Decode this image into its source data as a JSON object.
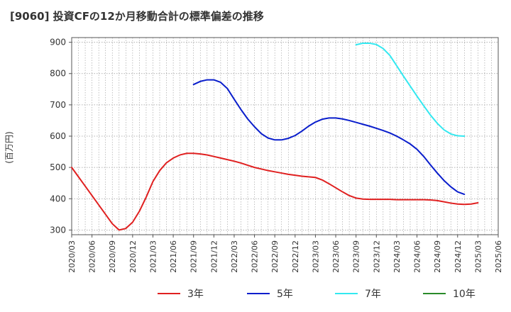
{
  "chart_data": {
    "type": "line",
    "title": "[9060]  投資CFの12か月移動合計の標準偏差の推移",
    "ylabel": "(百万円)",
    "xlabel": "",
    "ylim": [
      285,
      915
    ],
    "yticks": [
      300,
      400,
      500,
      600,
      700,
      800,
      900
    ],
    "x_categories": [
      "2020/03",
      "2020/06",
      "2020/09",
      "2020/12",
      "2021/03",
      "2021/06",
      "2021/09",
      "2021/12",
      "2022/03",
      "2022/06",
      "2022/09",
      "2022/12",
      "2023/03",
      "2023/06",
      "2023/09",
      "2023/12",
      "2024/03",
      "2024/06",
      "2024/09",
      "2024/12",
      "2025/03",
      "2025/06"
    ],
    "grid": true,
    "legend_position": "bottom",
    "colors": {
      "3年": "#e02020",
      "5年": "#0a1ecc",
      "7年": "#33e8f0",
      "10年": "#2a8a2a"
    },
    "series": [
      {
        "name": "3年",
        "color": "#e02020",
        "points": [
          [
            "2020/03",
            500
          ],
          [
            "2020/04",
            470
          ],
          [
            "2020/05",
            440
          ],
          [
            "2020/06",
            410
          ],
          [
            "2020/07",
            380
          ],
          [
            "2020/08",
            350
          ],
          [
            "2020/09",
            320
          ],
          [
            "2020/10",
            300
          ],
          [
            "2020/11",
            305
          ],
          [
            "2020/12",
            325
          ],
          [
            "2021/01",
            360
          ],
          [
            "2021/02",
            405
          ],
          [
            "2021/03",
            455
          ],
          [
            "2021/04",
            490
          ],
          [
            "2021/05",
            515
          ],
          [
            "2021/06",
            530
          ],
          [
            "2021/07",
            540
          ],
          [
            "2021/08",
            545
          ],
          [
            "2021/09",
            545
          ],
          [
            "2021/10",
            543
          ],
          [
            "2021/11",
            540
          ],
          [
            "2021/12",
            535
          ],
          [
            "2022/01",
            530
          ],
          [
            "2022/02",
            525
          ],
          [
            "2022/03",
            520
          ],
          [
            "2022/04",
            514
          ],
          [
            "2022/05",
            507
          ],
          [
            "2022/06",
            500
          ],
          [
            "2022/07",
            495
          ],
          [
            "2022/08",
            490
          ],
          [
            "2022/09",
            486
          ],
          [
            "2022/10",
            482
          ],
          [
            "2022/11",
            478
          ],
          [
            "2022/12",
            475
          ],
          [
            "2023/01",
            472
          ],
          [
            "2023/02",
            470
          ],
          [
            "2023/03",
            468
          ],
          [
            "2023/04",
            460
          ],
          [
            "2023/05",
            448
          ],
          [
            "2023/06",
            435
          ],
          [
            "2023/07",
            422
          ],
          [
            "2023/08",
            410
          ],
          [
            "2023/09",
            402
          ],
          [
            "2023/10",
            399
          ],
          [
            "2023/11",
            398
          ],
          [
            "2023/12",
            398
          ],
          [
            "2024/01",
            398
          ],
          [
            "2024/02",
            398
          ],
          [
            "2024/03",
            397
          ],
          [
            "2024/04",
            397
          ],
          [
            "2024/05",
            397
          ],
          [
            "2024/06",
            397
          ],
          [
            "2024/07",
            397
          ],
          [
            "2024/08",
            396
          ],
          [
            "2024/09",
            394
          ],
          [
            "2024/10",
            390
          ],
          [
            "2024/11",
            386
          ],
          [
            "2024/12",
            383
          ],
          [
            "2025/01",
            382
          ],
          [
            "2025/02",
            383
          ],
          [
            "2025/03",
            387
          ]
        ]
      },
      {
        "name": "5年",
        "color": "#0a1ecc",
        "points": [
          [
            "2021/09",
            765
          ],
          [
            "2021/10",
            775
          ],
          [
            "2021/11",
            780
          ],
          [
            "2021/12",
            780
          ],
          [
            "2022/01",
            772
          ],
          [
            "2022/02",
            752
          ],
          [
            "2022/03",
            718
          ],
          [
            "2022/04",
            685
          ],
          [
            "2022/05",
            655
          ],
          [
            "2022/06",
            630
          ],
          [
            "2022/07",
            608
          ],
          [
            "2022/08",
            594
          ],
          [
            "2022/09",
            588
          ],
          [
            "2022/10",
            588
          ],
          [
            "2022/11",
            593
          ],
          [
            "2022/12",
            602
          ],
          [
            "2023/01",
            616
          ],
          [
            "2023/02",
            632
          ],
          [
            "2023/03",
            645
          ],
          [
            "2023/04",
            654
          ],
          [
            "2023/05",
            658
          ],
          [
            "2023/06",
            658
          ],
          [
            "2023/07",
            655
          ],
          [
            "2023/08",
            650
          ],
          [
            "2023/09",
            644
          ],
          [
            "2023/10",
            638
          ],
          [
            "2023/11",
            632
          ],
          [
            "2023/12",
            625
          ],
          [
            "2024/01",
            618
          ],
          [
            "2024/02",
            610
          ],
          [
            "2024/03",
            600
          ],
          [
            "2024/04",
            588
          ],
          [
            "2024/05",
            575
          ],
          [
            "2024/06",
            558
          ],
          [
            "2024/07",
            535
          ],
          [
            "2024/08",
            508
          ],
          [
            "2024/09",
            482
          ],
          [
            "2024/10",
            458
          ],
          [
            "2024/11",
            438
          ],
          [
            "2024/12",
            422
          ],
          [
            "2025/01",
            414
          ]
        ]
      },
      {
        "name": "7年",
        "color": "#33e8f0",
        "points": [
          [
            "2023/09",
            892
          ],
          [
            "2023/10",
            897
          ],
          [
            "2023/11",
            897
          ],
          [
            "2023/12",
            893
          ],
          [
            "2024/01",
            880
          ],
          [
            "2024/02",
            858
          ],
          [
            "2024/03",
            825
          ],
          [
            "2024/04",
            792
          ],
          [
            "2024/05",
            760
          ],
          [
            "2024/06",
            728
          ],
          [
            "2024/07",
            697
          ],
          [
            "2024/08",
            667
          ],
          [
            "2024/09",
            641
          ],
          [
            "2024/10",
            620
          ],
          [
            "2024/11",
            607
          ],
          [
            "2024/12",
            601
          ],
          [
            "2025/01",
            600
          ]
        ]
      },
      {
        "name": "10年",
        "color": "#2a8a2a",
        "points": []
      }
    ]
  }
}
